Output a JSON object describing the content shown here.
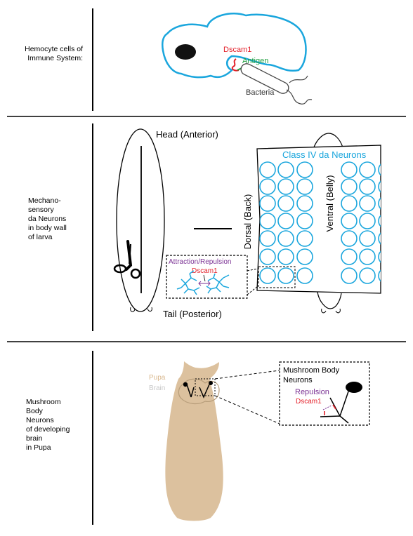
{
  "rows": {
    "hemocyte": {
      "label": "Hemocyte cells of\nImmune System:",
      "dscam": "Dscam1",
      "antigen": "Antigen",
      "bacteria": "Bacteria"
    },
    "da_neurons": {
      "label": "Mechano-\nsensory\nda Neurons\nin body wall\nof larva",
      "head": "Head (Anterior)",
      "tail": "Tail (Posterior)",
      "inset_title": "Attraction/Repulsion",
      "inset_dscam": "Dscam1",
      "class_label": "Class IV da Neurons",
      "dorsal": "Dorsal (Back)",
      "ventral": "Ventral (Belly)"
    },
    "mushroom": {
      "label": "Mushroom\nBody\nNeurons\nof developing\nbrain\nin Pupa",
      "pupa": "Pupa",
      "brain": "Brain",
      "inset_title_1": "Mushroom Body",
      "inset_title_2": "Neurons",
      "repulsion": "Repulsion",
      "dscam": "Dscam1"
    }
  },
  "colors": {
    "cell_outline": "#1aa6dd",
    "dscam": "#e3202a",
    "antigen": "#1f9e3e",
    "attraction": "#7b3294",
    "pupa_body": "#dcc19e",
    "pupa_label": "#d9b88e",
    "brain_label": "#c9c9c9"
  }
}
